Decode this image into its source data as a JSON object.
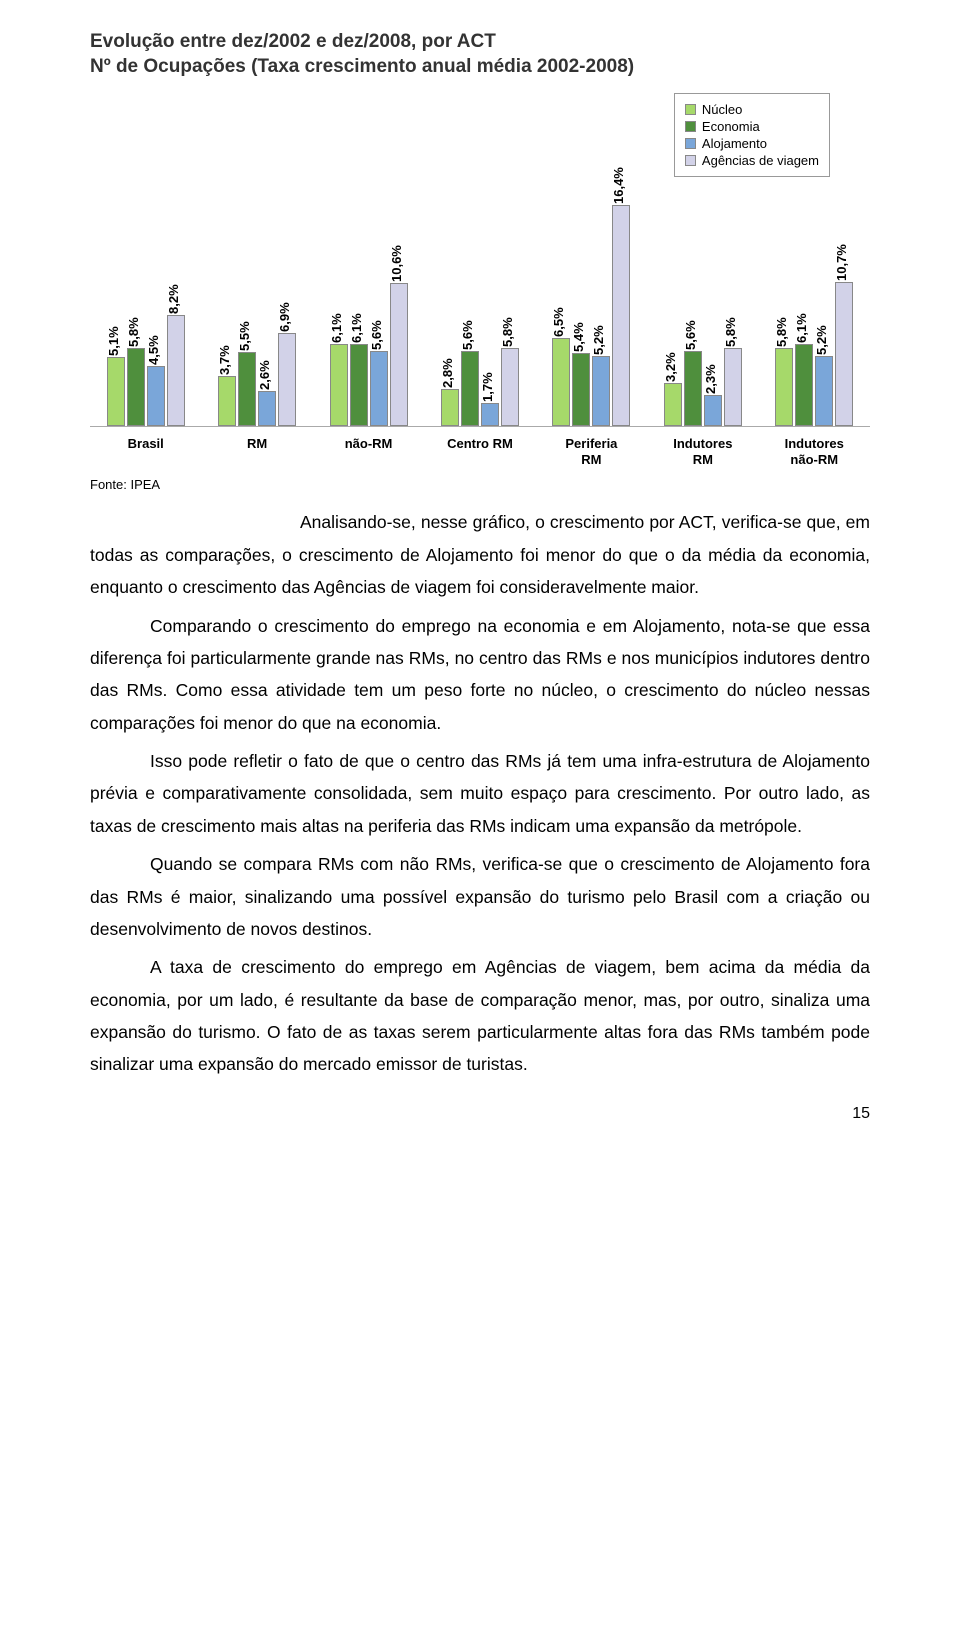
{
  "chart": {
    "title_line1": "Evolução entre dez/2002 e dez/2008, por ACT",
    "title_line2": "Nº de Ocupações (Taxa crescimento anual média 2002-2008)",
    "legend": {
      "items": [
        {
          "label": "Núcleo",
          "color": "#a6d96a"
        },
        {
          "label": "Economia",
          "color": "#4f8f3d"
        },
        {
          "label": "Alojamento",
          "color": "#7aa6d9"
        },
        {
          "label": "Agências de viagem",
          "color": "#d2d2e8"
        }
      ]
    },
    "series_colors": [
      "#a6d96a",
      "#4f8f3d",
      "#7aa6d9",
      "#d2d2e8"
    ],
    "ymax": 17.0,
    "groups": [
      {
        "label": "Brasil",
        "values": [
          5.1,
          5.8,
          4.5,
          8.2
        ],
        "labels": [
          "5,1%",
          "5,8%",
          "4,5%",
          "8,2%"
        ]
      },
      {
        "label": "RM",
        "values": [
          3.7,
          5.5,
          2.6,
          6.9
        ],
        "labels": [
          "3,7%",
          "5,5%",
          "2,6%",
          "6,9%"
        ]
      },
      {
        "label": "não-RM",
        "values": [
          6.1,
          6.1,
          5.6,
          10.6
        ],
        "labels": [
          "6,1%",
          "6,1%",
          "5,6%",
          "10,6%"
        ]
      },
      {
        "label": "Centro RM",
        "values": [
          2.8,
          5.6,
          1.7,
          5.8
        ],
        "labels": [
          "2,8%",
          "5,6%",
          "1,7%",
          "5,8%"
        ]
      },
      {
        "label": "Periferia\nRM",
        "values": [
          6.5,
          5.4,
          5.2,
          16.4
        ],
        "labels": [
          "6,5%",
          "5,4%",
          "5,2%",
          "16,4%"
        ]
      },
      {
        "label": "Indutores\nRM",
        "values": [
          3.2,
          5.6,
          2.3,
          5.8
        ],
        "labels": [
          "3,2%",
          "5,6%",
          "2,3%",
          "5,8%"
        ]
      },
      {
        "label": "Indutores\nnão-RM",
        "values": [
          5.8,
          6.1,
          5.2,
          10.7
        ],
        "labels": [
          "5,8%",
          "6,1%",
          "5,2%",
          "10,7%"
        ]
      }
    ]
  },
  "source": "Fonte: IPEA",
  "paragraphs": {
    "p1": "Analisando-se, nesse gráfico, o crescimento por ACT, verifica-se que, em todas as comparações, o crescimento de Alojamento foi menor do que o da média da economia, enquanto o crescimento das Agências de viagem foi consideravelmente maior.",
    "p2": "Comparando o crescimento do emprego na economia e em Alojamento, nota-se que essa diferença foi particularmente grande nas RMs, no centro das RMs e nos municípios indutores dentro das RMs. Como essa atividade tem um peso forte no núcleo, o crescimento do núcleo nessas comparações foi menor do que na economia.",
    "p3": "Isso pode refletir o fato de que o centro das RMs já tem uma infra-estrutura de Alojamento prévia e comparativamente consolidada, sem muito espaço para crescimento. Por outro lado, as taxas de crescimento mais altas na periferia das RMs indicam uma expansão da metrópole.",
    "p4": "Quando se compara RMs com não RMs, verifica-se que o crescimento de Alojamento fora das RMs é maior, sinalizando uma possível expansão do turismo pelo Brasil com a criação ou desenvolvimento de novos destinos.",
    "p5": "A taxa de crescimento do emprego em Agências de viagem, bem acima da média da economia, por um lado, é resultante da base de comparação menor, mas, por outro, sinaliza uma expansão do turismo. O fato de as taxas serem particularmente altas fora das RMs também pode sinalizar uma expansão do mercado emissor de turistas."
  },
  "page_number": "15"
}
